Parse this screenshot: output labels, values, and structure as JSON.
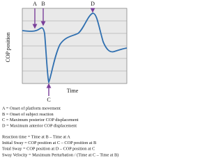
{
  "figure": {
    "y_axis_label": "COP position",
    "x_axis_label": "Time",
    "markers": [
      "A",
      "B",
      "C",
      "D"
    ],
    "definitions": [
      "A = Onset of platform movement",
      "B = Onset of subject reaction",
      "C = Maximum posterior COP displacement",
      "D = Maximum anterior COP displacement"
    ],
    "formulas": [
      "Reaction time = Time at B – Time at A",
      "Initial Sway = COP position at C – COP position at B",
      "Total Sway = COP position at D – COP position at C",
      "Sway Velocity = Maximum Perturbation / (Time at C – Time at B)"
    ]
  }
}
